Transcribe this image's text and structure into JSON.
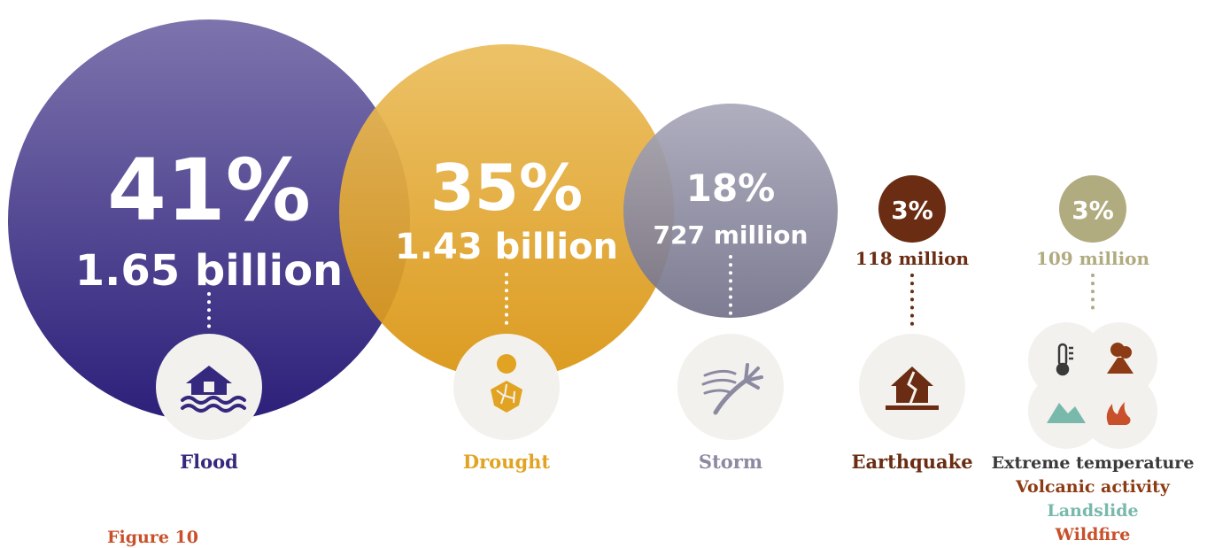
{
  "chart_data": {
    "type": "bubble",
    "categories": [
      {
        "name": "Flood",
        "percent": "41%",
        "people": "1.65 billion",
        "share": 41,
        "people_millions": 1650,
        "color": "#35297f",
        "icon": "flooded-house-icon"
      },
      {
        "name": "Drought",
        "percent": "35%",
        "people": "1.43 billion",
        "share": 35,
        "people_millions": 1430,
        "color": "#e1a321",
        "icon": "cracked-earth-icon"
      },
      {
        "name": "Storm",
        "percent": "18%",
        "people": "727 million",
        "share": 18,
        "people_millions": 727,
        "color": "#8b8aa1",
        "icon": "windswept-palm-icon"
      },
      {
        "name": "Earthquake",
        "percent": "3%",
        "people": "118 million",
        "share": 3,
        "people_millions": 118,
        "color": "#6a2c12",
        "icon": "cracked-house-icon"
      },
      {
        "name": "Extreme temperature\nVolcanic activity\nLandslide\nWildfire",
        "percent": "3%",
        "people": "109 million",
        "share": 3,
        "people_millions": 109,
        "color": "#b1ab80",
        "icon": "multi-hazard-icons"
      }
    ],
    "other_labels": [
      {
        "text": "Extreme temperature",
        "color": "#3a3a3a"
      },
      {
        "text": "Volcanic activity",
        "color": "#8c3b14"
      },
      {
        "text": "Landslide",
        "color": "#78b9ac"
      },
      {
        "text": "Wildfire",
        "color": "#c8502a"
      }
    ]
  },
  "caption": "Figure 10"
}
